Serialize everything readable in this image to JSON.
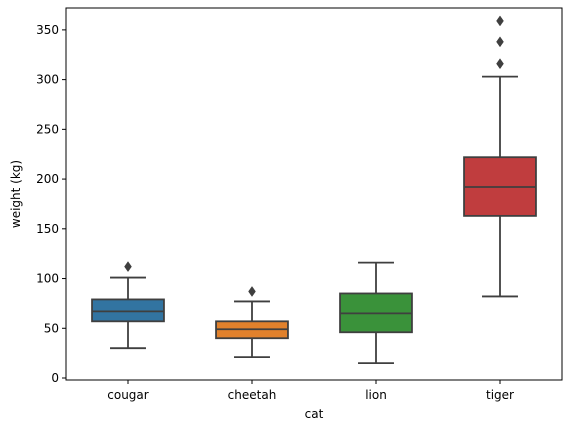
{
  "chart_data": {
    "type": "box",
    "xlabel": "cat",
    "ylabel": "weight (kg)",
    "ylim": [
      -2,
      372
    ],
    "yticks": [
      0,
      50,
      100,
      150,
      200,
      250,
      300,
      350
    ],
    "categories": [
      "cougar",
      "cheetah",
      "lion",
      "tiger"
    ],
    "boxes": [
      {
        "category": "cougar",
        "color": "#3274a1",
        "whisker_low": 30,
        "q1": 57,
        "median": 67,
        "q3": 79,
        "whisker_high": 101,
        "outliers": [
          112
        ]
      },
      {
        "category": "cheetah",
        "color": "#e1812c",
        "whisker_low": 21,
        "q1": 40,
        "median": 49,
        "q3": 57,
        "whisker_high": 77,
        "outliers": [
          87
        ]
      },
      {
        "category": "lion",
        "color": "#3a923a",
        "whisker_low": 15,
        "q1": 46,
        "median": 65,
        "q3": 85,
        "whisker_high": 116,
        "outliers": []
      },
      {
        "category": "tiger",
        "color": "#c03d3e",
        "whisker_low": 82,
        "q1": 163,
        "median": 192,
        "q3": 222,
        "whisker_high": 303,
        "outliers": [
          316,
          338,
          359
        ]
      }
    ],
    "grid": false,
    "legend": "none"
  }
}
